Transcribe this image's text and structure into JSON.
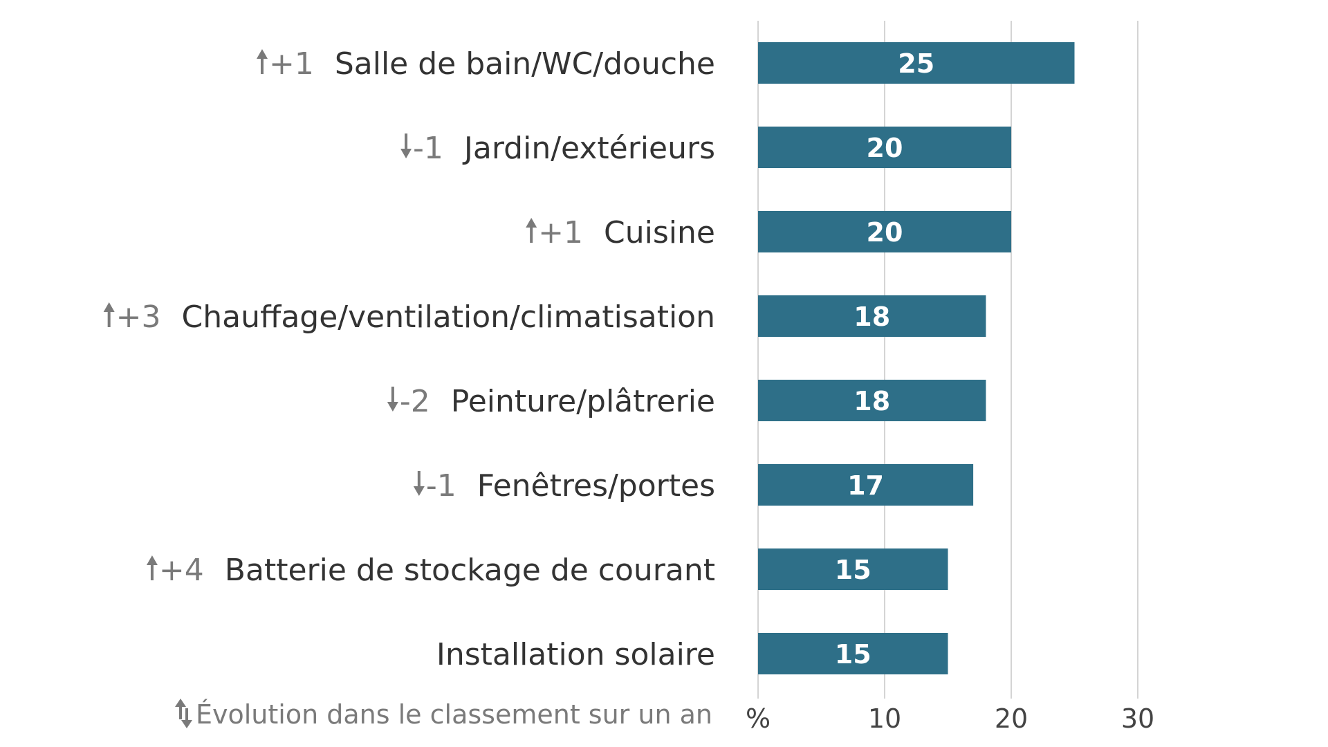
{
  "chart_data": {
    "type": "bar",
    "orientation": "horizontal",
    "categories": [
      "Salle de bain/WC/douche",
      "Jardin/extérieurs",
      "Cuisine",
      "Chauffage/ventilation/climatisation",
      "Peinture/plâtrerie",
      "Fenêtres/portes",
      "Batterie de stockage de courant",
      "Installation solaire"
    ],
    "values": [
      25,
      20,
      20,
      18,
      18,
      17,
      15,
      15
    ],
    "rank_changes": [
      "+1",
      "-1",
      "+1",
      "+3",
      "-2",
      "-1",
      "+4",
      ""
    ],
    "rank_directions": [
      "up",
      "down",
      "up",
      "up",
      "down",
      "down",
      "up",
      ""
    ],
    "xlim": [
      0,
      30
    ],
    "x_ticks": [
      0,
      10,
      20,
      30
    ],
    "x_tick_labels": [
      "%",
      "10",
      "20",
      "30"
    ],
    "grid": true,
    "bar_color": "#2e6f88",
    "footnote": "Évolution dans le classement sur un an"
  }
}
